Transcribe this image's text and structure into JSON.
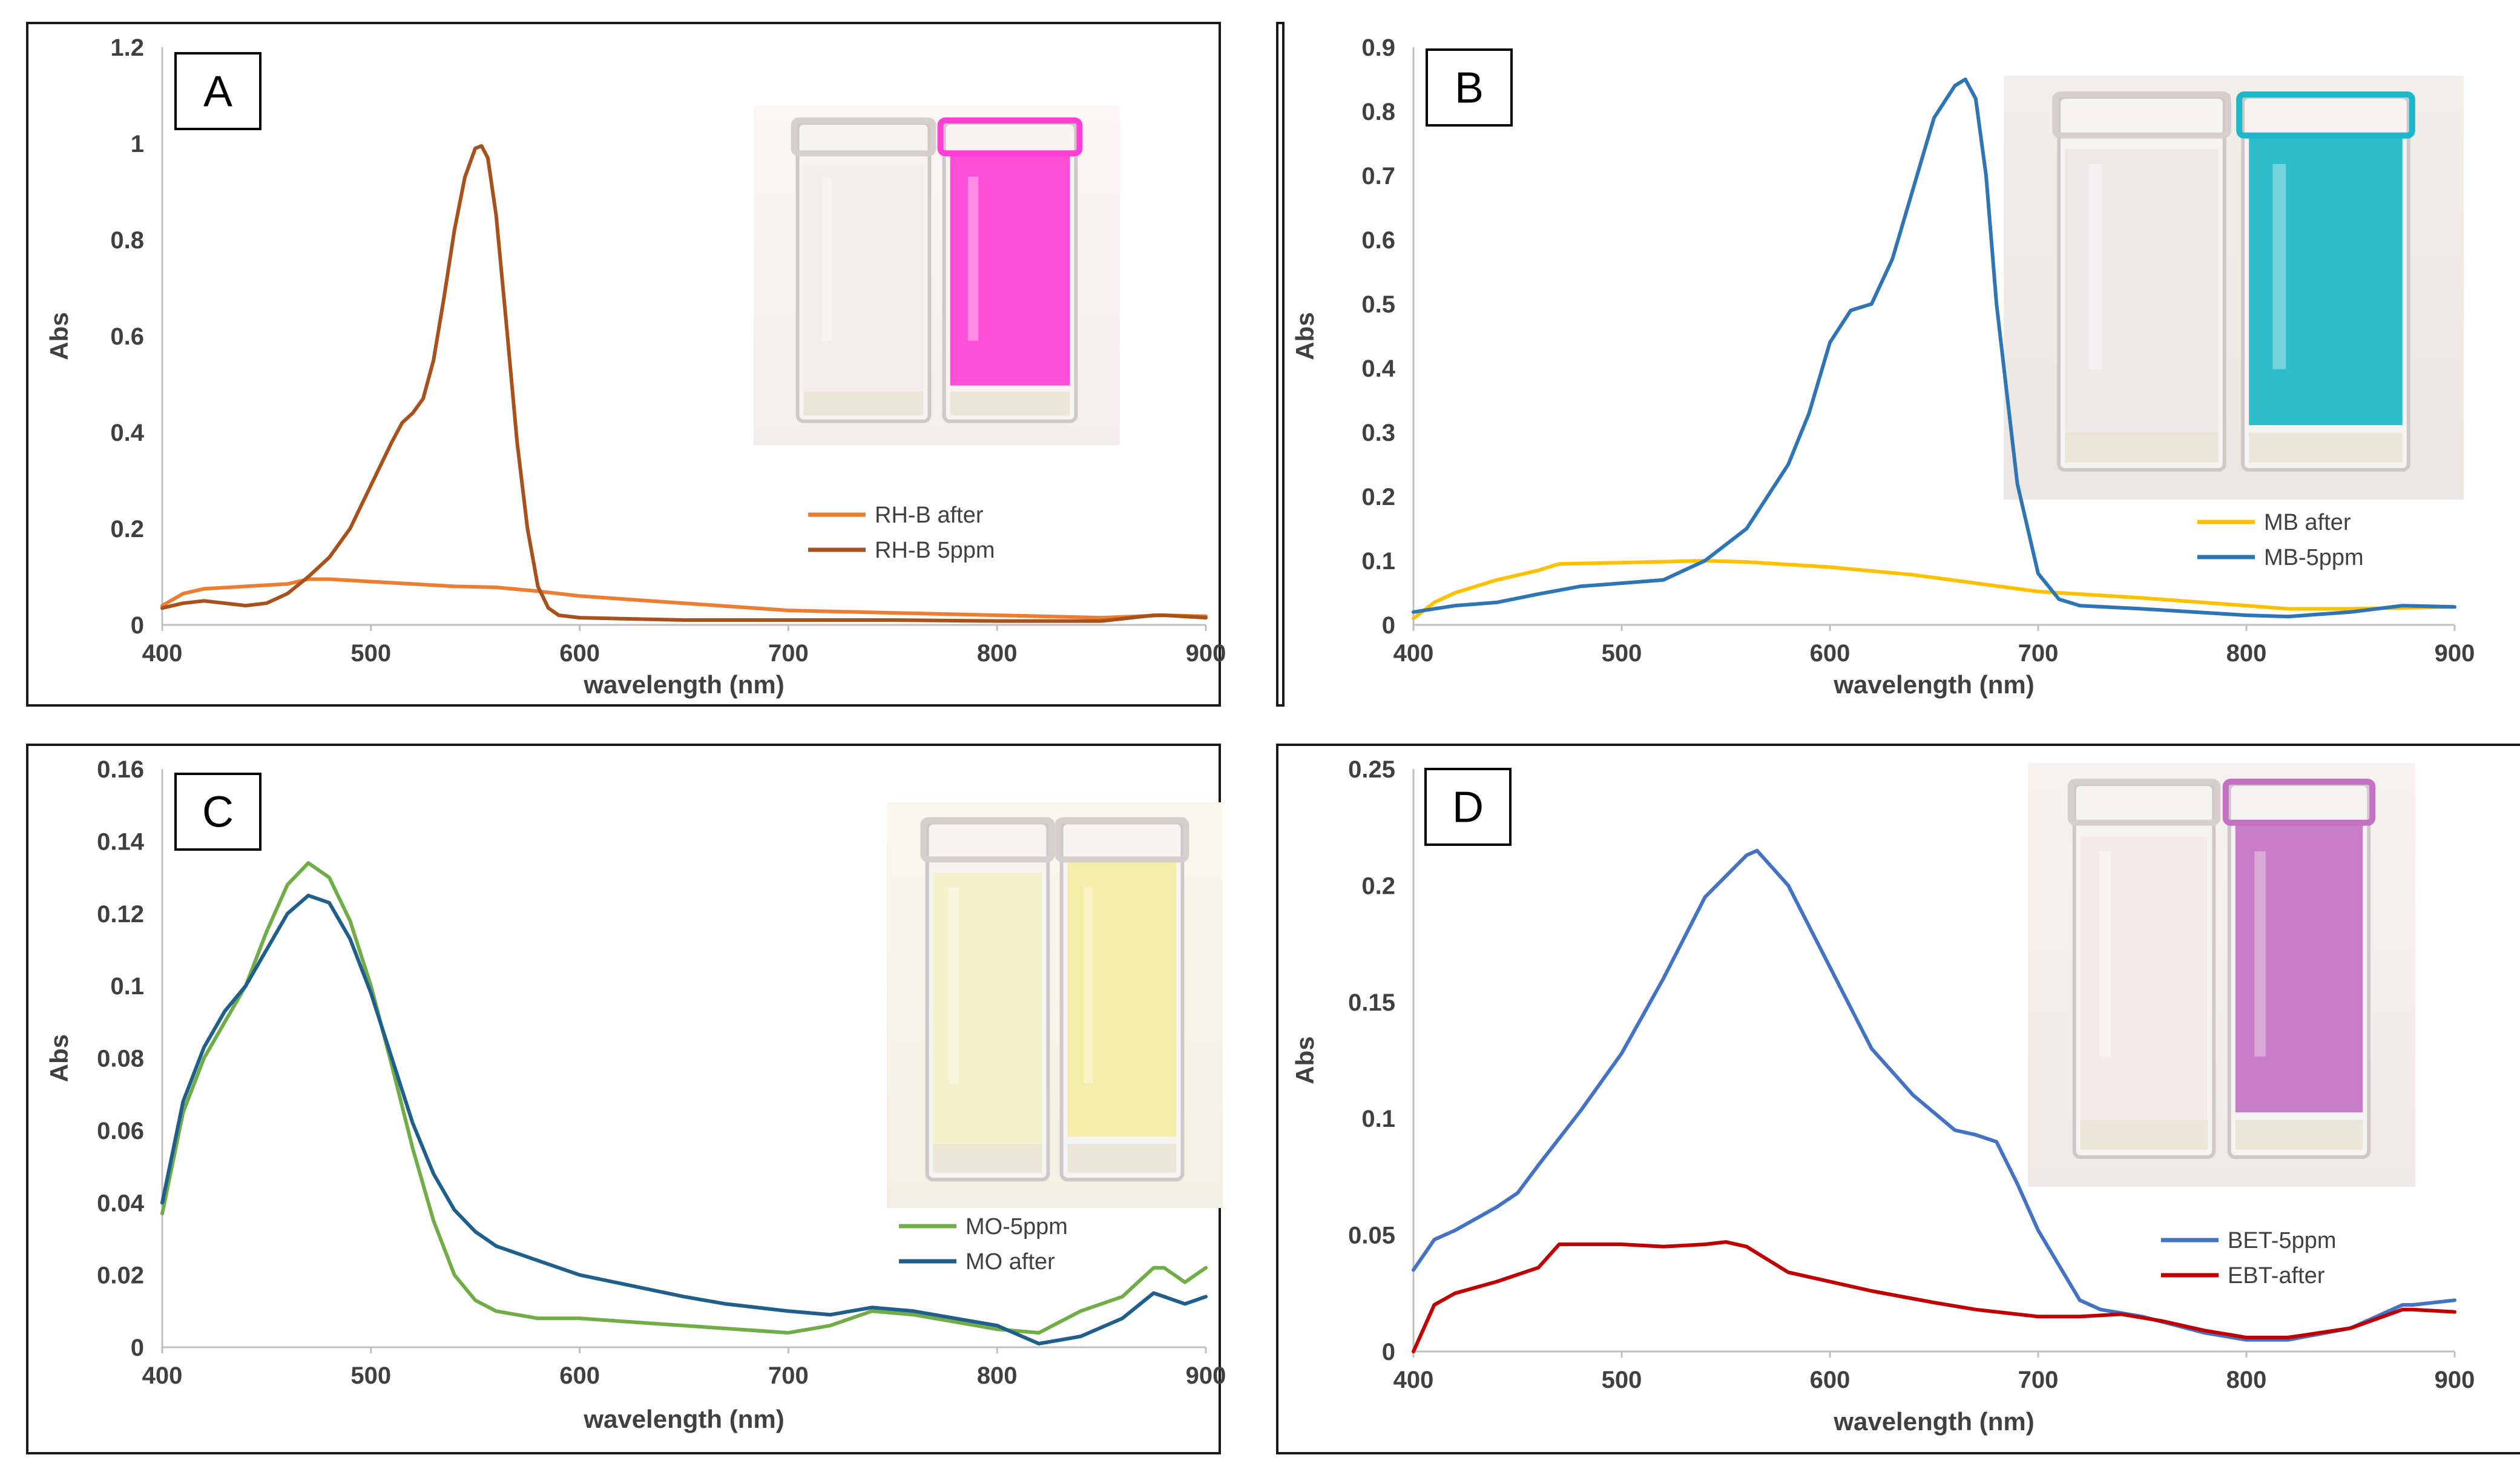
{
  "figure": {
    "panels": [
      {
        "letter": "A",
        "inset": "photo-rhodamine-b-cuvettes",
        "liquid_colors": [
          "#f4e8e8",
          "#ff3fd6"
        ]
      },
      {
        "letter": "B",
        "inset": "photo-methylene-blue-cuvettes",
        "liquid_colors": [
          "#e6e4e2",
          "#1cb7c8"
        ]
      },
      {
        "letter": "C",
        "inset": "photo-methyl-orange-cuvettes",
        "liquid_colors": [
          "#f6efb8",
          "#f3eba4"
        ]
      },
      {
        "letter": "D",
        "inset": "photo-eriochrome-black-t-cuvettes",
        "liquid_colors": [
          "#f5e6e2",
          "#c471c4"
        ]
      }
    ]
  },
  "chart_data": [
    {
      "type": "line",
      "panel": "A",
      "title": "",
      "xlabel": "wavelength (nm)",
      "ylabel": "Abs",
      "xlim": [
        400,
        900
      ],
      "ylim": [
        0,
        1.2
      ],
      "xticks": [
        400,
        500,
        600,
        700,
        800,
        900
      ],
      "xtick_labels": [
        "400",
        "500",
        "600",
        "700",
        "800",
        "900"
      ],
      "yticks": [
        0,
        0.2,
        0.4,
        0.6,
        0.8,
        1,
        1.2
      ],
      "ytick_labels": [
        "0",
        "0.2",
        "0.4",
        "0.6",
        "0.8",
        "1",
        "1.2"
      ],
      "legend_position": "right",
      "series": [
        {
          "name": "RH-B after",
          "color": "#ed7d31",
          "x": [
            400,
            410,
            420,
            440,
            460,
            470,
            480,
            500,
            520,
            540,
            560,
            580,
            600,
            650,
            700,
            750,
            800,
            850,
            880,
            900
          ],
          "y": [
            0.04,
            0.065,
            0.075,
            0.08,
            0.085,
            0.095,
            0.095,
            0.09,
            0.085,
            0.08,
            0.078,
            0.07,
            0.06,
            0.045,
            0.03,
            0.025,
            0.02,
            0.015,
            0.02,
            0.018
          ]
        },
        {
          "name": "RH-B 5ppm",
          "color": "#a9511b",
          "x": [
            400,
            410,
            420,
            430,
            440,
            450,
            460,
            470,
            480,
            490,
            500,
            510,
            515,
            520,
            525,
            530,
            535,
            540,
            545,
            550,
            553,
            556,
            560,
            565,
            570,
            575,
            580,
            585,
            590,
            600,
            620,
            650,
            700,
            750,
            800,
            850,
            875,
            880,
            900
          ],
          "y": [
            0.035,
            0.045,
            0.05,
            0.045,
            0.04,
            0.045,
            0.065,
            0.1,
            0.14,
            0.2,
            0.29,
            0.38,
            0.42,
            0.44,
            0.47,
            0.55,
            0.68,
            0.82,
            0.93,
            0.99,
            0.995,
            0.97,
            0.85,
            0.62,
            0.38,
            0.2,
            0.08,
            0.035,
            0.02,
            0.015,
            0.013,
            0.01,
            0.01,
            0.01,
            0.008,
            0.008,
            0.02,
            0.02,
            0.015
          ]
        }
      ]
    },
    {
      "type": "line",
      "panel": "B",
      "title": "",
      "xlabel": "wavelength (nm)",
      "ylabel": "Abs",
      "xlim": [
        400,
        900
      ],
      "ylim": [
        0,
        0.9
      ],
      "xticks": [
        400,
        500,
        600,
        700,
        800,
        900
      ],
      "xtick_labels": [
        "400",
        "500",
        "600",
        "700",
        "800",
        "900"
      ],
      "yticks": [
        0,
        0.1,
        0.2,
        0.3,
        0.4,
        0.5,
        0.6,
        0.7,
        0.8,
        0.9
      ],
      "ytick_labels": [
        "0",
        "0.1",
        "0.2",
        "0.3",
        "0.4",
        "0.5",
        "0.6",
        "0.7",
        "0.8",
        "0.9"
      ],
      "legend_position": "right",
      "series": [
        {
          "name": "MB after",
          "color": "#ffc000",
          "x": [
            400,
            410,
            420,
            440,
            460,
            470,
            500,
            540,
            560,
            600,
            640,
            670,
            700,
            750,
            800,
            820,
            850,
            900
          ],
          "y": [
            0.01,
            0.035,
            0.05,
            0.07,
            0.085,
            0.095,
            0.097,
            0.1,
            0.098,
            0.09,
            0.078,
            0.065,
            0.052,
            0.042,
            0.03,
            0.025,
            0.025,
            0.028
          ]
        },
        {
          "name": "MB-5ppm",
          "color": "#2e75b6",
          "x": [
            400,
            420,
            440,
            460,
            480,
            500,
            520,
            540,
            560,
            580,
            590,
            600,
            610,
            620,
            630,
            640,
            650,
            660,
            665,
            670,
            675,
            680,
            690,
            700,
            710,
            720,
            750,
            800,
            820,
            850,
            875,
            900
          ],
          "y": [
            0.02,
            0.03,
            0.035,
            0.048,
            0.06,
            0.065,
            0.07,
            0.1,
            0.15,
            0.25,
            0.33,
            0.44,
            0.49,
            0.5,
            0.57,
            0.68,
            0.79,
            0.84,
            0.85,
            0.82,
            0.7,
            0.5,
            0.22,
            0.08,
            0.04,
            0.03,
            0.025,
            0.015,
            0.013,
            0.02,
            0.03,
            0.028
          ]
        }
      ]
    },
    {
      "type": "line",
      "panel": "C",
      "title": "",
      "xlabel": "wavelength (nm)",
      "ylabel": "Abs",
      "xlim": [
        400,
        900
      ],
      "ylim": [
        0,
        0.16
      ],
      "xticks": [
        400,
        500,
        600,
        700,
        800,
        900
      ],
      "xtick_labels": [
        "400",
        "500",
        "600",
        "700",
        "800",
        "900"
      ],
      "yticks": [
        0,
        0.02,
        0.04,
        0.06,
        0.08,
        0.1,
        0.12,
        0.14,
        0.16
      ],
      "ytick_labels": [
        "0",
        "0.02",
        "0.04",
        "0.06",
        "0.08",
        "0.1",
        "0.12",
        "0.14",
        "0.16"
      ],
      "legend_position": "bottom-right",
      "series": [
        {
          "name": "MO-5ppm",
          "color": "#70ad47",
          "x": [
            400,
            410,
            420,
            430,
            440,
            450,
            460,
            470,
            480,
            490,
            500,
            510,
            520,
            530,
            540,
            550,
            560,
            580,
            600,
            650,
            700,
            720,
            740,
            760,
            780,
            800,
            820,
            840,
            860,
            875,
            880,
            890,
            900
          ],
          "y": [
            0.037,
            0.065,
            0.08,
            0.09,
            0.1,
            0.115,
            0.128,
            0.134,
            0.13,
            0.118,
            0.1,
            0.078,
            0.055,
            0.035,
            0.02,
            0.013,
            0.01,
            0.008,
            0.008,
            0.006,
            0.004,
            0.006,
            0.01,
            0.009,
            0.007,
            0.005,
            0.004,
            0.01,
            0.014,
            0.022,
            0.022,
            0.018,
            0.022
          ]
        },
        {
          "name": "MO after",
          "color": "#1f5f8b",
          "x": [
            400,
            410,
            420,
            430,
            440,
            450,
            460,
            470,
            480,
            490,
            500,
            510,
            520,
            530,
            540,
            550,
            560,
            580,
            600,
            650,
            670,
            700,
            720,
            740,
            760,
            780,
            800,
            820,
            840,
            860,
            875,
            880,
            890,
            900
          ],
          "y": [
            0.04,
            0.068,
            0.083,
            0.093,
            0.1,
            0.11,
            0.12,
            0.125,
            0.123,
            0.113,
            0.098,
            0.08,
            0.062,
            0.048,
            0.038,
            0.032,
            0.028,
            0.024,
            0.02,
            0.014,
            0.012,
            0.01,
            0.009,
            0.011,
            0.01,
            0.008,
            0.006,
            0.001,
            0.003,
            0.008,
            0.015,
            0.014,
            0.012,
            0.014
          ]
        }
      ]
    },
    {
      "type": "line",
      "panel": "D",
      "title": "",
      "xlabel": "wavelength (nm)",
      "ylabel": "Abs",
      "xlim": [
        400,
        900
      ],
      "ylim": [
        0,
        0.25
      ],
      "xticks": [
        400,
        500,
        600,
        700,
        800,
        900
      ],
      "xtick_labels": [
        "400",
        "500",
        "600",
        "700",
        "800",
        "900"
      ],
      "yticks": [
        0,
        0.05,
        0.1,
        0.15,
        0.2,
        0.25
      ],
      "ytick_labels": [
        "0",
        "0.05",
        "0.1",
        "0.15",
        "0.2",
        "0.25"
      ],
      "legend_position": "bottom-right",
      "series": [
        {
          "name": "BET-5ppm",
          "color": "#4472c4",
          "x": [
            400,
            410,
            420,
            440,
            450,
            460,
            480,
            500,
            520,
            540,
            560,
            565,
            580,
            600,
            620,
            640,
            660,
            670,
            680,
            690,
            700,
            720,
            730,
            750,
            780,
            800,
            820,
            850,
            875,
            880,
            900
          ],
          "y": [
            0.035,
            0.048,
            0.052,
            0.062,
            0.068,
            0.08,
            0.103,
            0.128,
            0.16,
            0.195,
            0.213,
            0.215,
            0.2,
            0.165,
            0.13,
            0.11,
            0.095,
            0.093,
            0.09,
            0.072,
            0.052,
            0.022,
            0.018,
            0.015,
            0.008,
            0.005,
            0.005,
            0.01,
            0.02,
            0.02,
            0.022
          ]
        },
        {
          "name": "EBT-after",
          "color": "#c00000",
          "x": [
            400,
            405,
            410,
            420,
            440,
            460,
            470,
            480,
            500,
            520,
            540,
            550,
            560,
            580,
            600,
            620,
            650,
            670,
            700,
            720,
            740,
            760,
            780,
            800,
            820,
            850,
            875,
            880,
            900
          ],
          "y": [
            0.0,
            0.01,
            0.02,
            0.025,
            0.03,
            0.036,
            0.046,
            0.046,
            0.046,
            0.045,
            0.046,
            0.047,
            0.045,
            0.034,
            0.03,
            0.026,
            0.021,
            0.018,
            0.015,
            0.015,
            0.016,
            0.013,
            0.009,
            0.006,
            0.006,
            0.01,
            0.018,
            0.018,
            0.017
          ]
        }
      ]
    }
  ]
}
